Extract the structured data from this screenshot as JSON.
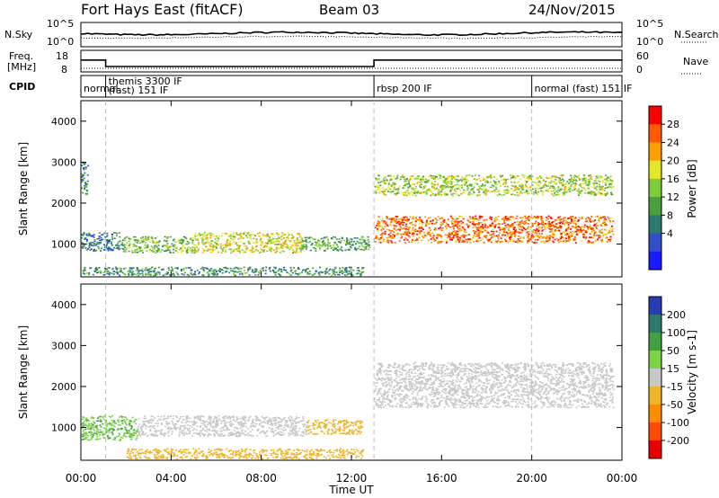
{
  "header": {
    "title": "Fort Hays East (fitACF)",
    "beam": "Beam 03",
    "date": "24/Nov/2015"
  },
  "noise_panel": {
    "left_label": "N.Sky",
    "right_label": "N.Search",
    "left_ticks": [
      "10^5",
      "10^0"
    ],
    "right_ticks": [
      "10^5",
      "10^0"
    ]
  },
  "freq_panel": {
    "left_label_1": "Freq.",
    "left_label_2": "[MHz]",
    "right_label": "Nave",
    "left_ticks": [
      "18",
      "8"
    ],
    "right_ticks": [
      "60",
      "0"
    ],
    "freq_steps": [
      {
        "t": 0.0,
        "v": 13.5
      },
      {
        "t": 1.1,
        "v": 10.5
      },
      {
        "t": 13.0,
        "v": 13.5
      },
      {
        "t": 24.0,
        "v": 13.5
      }
    ]
  },
  "cpid_panel": {
    "label": "CPID",
    "segments": [
      {
        "text": "normal",
        "start": 0.0
      },
      {
        "text": "themis 3300 IF",
        "start": 1.1,
        "line2": "(fast) 151 IF"
      },
      {
        "text": "rbsp 200 IF",
        "start": 13.0
      },
      {
        "text": "normal (fast) 151 IF",
        "start": 20.0
      }
    ]
  },
  "axes": {
    "xlabel": "Time UT",
    "xticks": [
      "00:00",
      "04:00",
      "08:00",
      "12:00",
      "16:00",
      "20:00",
      "00:00"
    ],
    "ylabel": "Slant Range [km]",
    "yticks": [
      "1000",
      "2000",
      "3000",
      "4000"
    ]
  },
  "power_colorbar": {
    "label": "Power [dB]",
    "ticks": [
      "4",
      "8",
      "12",
      "16",
      "20",
      "24",
      "28"
    ],
    "colors": [
      "#1a1aff",
      "#3050c8",
      "#2c7a70",
      "#4aa03c",
      "#7ccc3c",
      "#e6e628",
      "#ffa000",
      "#ff5a00",
      "#ff0000"
    ]
  },
  "velocity_colorbar": {
    "label": "Velocity [m s-1]",
    "ticks": [
      "200",
      "100",
      "50",
      "15",
      "-15",
      "-50",
      "-100",
      "-200"
    ],
    "colors": [
      "#2a3cb4",
      "#2e7a6e",
      "#41a041",
      "#7ed24a",
      "#c8c8c8",
      "#f0b428",
      "#ff8c00",
      "#ff4b00",
      "#e60000"
    ]
  },
  "chart_data": [
    {
      "type": "heatmap",
      "title": "Power",
      "xlabel": "Time UT",
      "ylabel": "Slant Range [km]",
      "xlim": [
        0,
        24
      ],
      "ylim": [
        200,
        4500
      ],
      "colorbar_label": "Power [dB]",
      "colorbar_range": [
        0,
        30
      ],
      "regions": [
        {
          "t0": 0.0,
          "t1": 1.8,
          "r0": 850,
          "r1": 1300,
          "value": 8
        },
        {
          "t0": 0.0,
          "t1": 0.3,
          "r0": 2200,
          "r1": 3000,
          "value": 10
        },
        {
          "t0": 1.8,
          "t1": 5.0,
          "r0": 800,
          "r1": 1200,
          "value": 14
        },
        {
          "t0": 5.0,
          "t1": 9.8,
          "r0": 800,
          "r1": 1300,
          "value": 18
        },
        {
          "t0": 9.8,
          "t1": 12.8,
          "r0": 850,
          "r1": 1200,
          "value": 12
        },
        {
          "t0": 13.0,
          "t1": 23.6,
          "r0": 1050,
          "r1": 1700,
          "value": 24
        },
        {
          "t0": 13.0,
          "t1": 23.6,
          "r0": 2200,
          "r1": 2700,
          "value": 16
        },
        {
          "t0": 0.0,
          "t1": 12.5,
          "r0": 250,
          "r1": 450,
          "value": 10
        }
      ]
    },
    {
      "type": "heatmap",
      "title": "Velocity",
      "xlabel": "Time UT",
      "ylabel": "Slant Range [km]",
      "xlim": [
        0,
        24
      ],
      "ylim": [
        200,
        4500
      ],
      "colorbar_label": "Velocity [m s-1]",
      "colorbar_range": [
        -200,
        200
      ],
      "regions": [
        {
          "t0": 0.0,
          "t1": 2.5,
          "r0": 700,
          "r1": 1300,
          "value": 60
        },
        {
          "t0": 2.5,
          "t1": 10.0,
          "r0": 800,
          "r1": 1300,
          "value": 0
        },
        {
          "t0": 10.0,
          "t1": 12.5,
          "r0": 850,
          "r1": 1200,
          "value": -50
        },
        {
          "t0": 13.0,
          "t1": 23.6,
          "r0": 1500,
          "r1": 2600,
          "value": 0
        },
        {
          "t0": 2.0,
          "t1": 12.5,
          "r0": 250,
          "r1": 500,
          "value": -50
        }
      ]
    }
  ]
}
